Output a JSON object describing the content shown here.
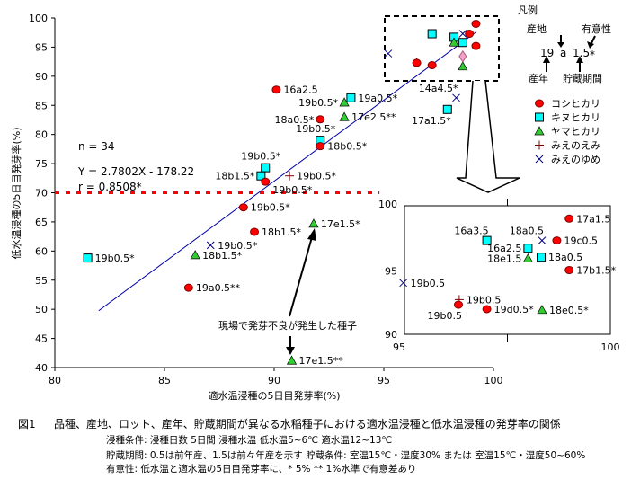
{
  "chart_data": {
    "type": "scatter",
    "xlabel": "適水温浸種の5日目発芽率(%)",
    "ylabel": "低水温浸種の5日目発芽率(%)",
    "xlim": [
      80,
      100
    ],
    "ylim": [
      40,
      100
    ],
    "xticks": [
      80,
      85,
      90,
      95,
      100
    ],
    "yticks": [
      40,
      45,
      50,
      55,
      60,
      65,
      70,
      75,
      80,
      85,
      90,
      95,
      100
    ],
    "threshold_y": 70,
    "regression": {
      "slope": 2.7802,
      "intercept": -178.22,
      "x_range": [
        82,
        99.2
      ],
      "equation": "Y = 2.7802X - 178.22",
      "r": "r  = 0.8508*",
      "n": "n = 34"
    },
    "colors": {
      "koshihikari": "#ff0000",
      "kinuhikari": "#00ffff",
      "yamahikari": "#33cc33",
      "mienoemi": "#800000",
      "mienoyume": "#000080",
      "threshold": "#ff0000",
      "regression": "#0000aa",
      "other": "#f4a0c8"
    },
    "points": [
      {
        "variety": "koshihikari",
        "x": 90.1,
        "y": 87.7,
        "label": "16a2.5",
        "side": "right"
      },
      {
        "variety": "kinuhikari",
        "x": 93.5,
        "y": 86.3,
        "label": "19a0.5*",
        "side": "right"
      },
      {
        "variety": "yamahikari",
        "x": 93.2,
        "y": 85.5,
        "label": "19b0.5*",
        "side": "left"
      },
      {
        "variety": "koshihikari",
        "x": 92.1,
        "y": 82.6,
        "label": "18a0.5*",
        "side": "left"
      },
      {
        "variety": "yamahikari",
        "x": 93.2,
        "y": 83.0,
        "label": "17e2.5**",
        "side": "right"
      },
      {
        "variety": "kinuhikari",
        "x": 92.1,
        "y": 79.0,
        "label": "19b0.5*",
        "side": "above"
      },
      {
        "variety": "koshihikari",
        "x": 92.1,
        "y": 78.0,
        "label": "18b0.5*",
        "side": "right"
      },
      {
        "variety": "kinuhikari",
        "x": 89.6,
        "y": 74.3,
        "label": "19b0.5*",
        "side": "above"
      },
      {
        "variety": "kinuhikari",
        "x": 89.4,
        "y": 72.9,
        "label": "18b1.5*",
        "side": "left"
      },
      {
        "variety": "koshihikari",
        "x": 89.6,
        "y": 71.9,
        "label": "19b0.5*",
        "side": "below"
      },
      {
        "variety": "mienoemi",
        "x": 90.7,
        "y": 72.9,
        "label": "19b0.5*",
        "side": "right"
      },
      {
        "variety": "koshihikari",
        "x": 88.6,
        "y": 67.5,
        "label": "19b0.5*",
        "side": "right"
      },
      {
        "variety": "yamahikari",
        "x": 91.8,
        "y": 64.7,
        "label": "17e1.5*",
        "side": "right"
      },
      {
        "variety": "koshihikari",
        "x": 89.1,
        "y": 63.3,
        "label": "18b1.5*",
        "side": "right"
      },
      {
        "variety": "mienoyume",
        "x": 87.1,
        "y": 61.0,
        "label": "19b0.5*",
        "side": "right"
      },
      {
        "variety": "yamahikari",
        "x": 86.4,
        "y": 59.3,
        "label": "18b1.5*",
        "side": "right"
      },
      {
        "variety": "kinuhikari",
        "x": 81.5,
        "y": 58.8,
        "label": "19b0.5*",
        "side": "right"
      },
      {
        "variety": "koshihikari",
        "x": 86.1,
        "y": 53.7,
        "label": "19a0.5**",
        "side": "right"
      },
      {
        "variety": "yamahikari",
        "x": 90.8,
        "y": 41.2,
        "label": "17e1.5**",
        "side": "right"
      },
      {
        "variety": "mienoyume",
        "x": 98.3,
        "y": 86.3,
        "label": "14a4.5*",
        "side": "aboveleft"
      },
      {
        "variety": "kinuhikari",
        "x": 97.9,
        "y": 84.3,
        "label": "17a1.5*",
        "side": "belowleft"
      },
      {
        "variety": "koshihikari",
        "x": 99.2,
        "y": 99.0
      },
      {
        "variety": "koshihikari",
        "x": 98.9,
        "y": 97.3
      },
      {
        "variety": "koshihikari",
        "x": 99.2,
        "y": 95.2
      },
      {
        "variety": "kinuhikari",
        "x": 97.2,
        "y": 97.3
      },
      {
        "variety": "kinuhikari",
        "x": 98.2,
        "y": 96.7
      },
      {
        "variety": "kinuhikari",
        "x": 98.6,
        "y": 95.8
      },
      {
        "variety": "yamahikari",
        "x": 98.2,
        "y": 95.8
      },
      {
        "variety": "yamahikari",
        "x": 98.6,
        "y": 91.7
      },
      {
        "variety": "other",
        "x": 98.6,
        "y": 93.4
      },
      {
        "variety": "mienoyume",
        "x": 98.6,
        "y": 97.3
      },
      {
        "variety": "mienoyume",
        "x": 95.2,
        "y": 93.9
      },
      {
        "variety": "mienoemi",
        "x": 96.5,
        "y": 92.3
      },
      {
        "variety": "koshihikari",
        "x": 96.5,
        "y": 92.3
      },
      {
        "variety": "koshihikari",
        "x": 97.2,
        "y": 91.9
      }
    ],
    "inset": {
      "xlim": [
        95,
        100
      ],
      "ylim": [
        90,
        100
      ],
      "xticks": [
        95,
        100
      ],
      "yticks": [
        90,
        95,
        100
      ],
      "points": [
        {
          "variety": "koshihikari",
          "x": 99.0,
          "y": 99.0,
          "label": "17a1.5",
          "side": "right"
        },
        {
          "variety": "mienoyume",
          "x": 98.34,
          "y": 97.3,
          "label": "18a0.5",
          "side": "aboveleft"
        },
        {
          "variety": "koshihikari",
          "x": 98.7,
          "y": 97.3,
          "label": "19c0.5",
          "side": "right"
        },
        {
          "variety": "kinuhikari",
          "x": 97.0,
          "y": 97.3,
          "label": "16a3.5",
          "side": "aboveleft"
        },
        {
          "variety": "kinuhikari",
          "x": 98.0,
          "y": 96.7,
          "label": "16a2.5",
          "side": "left"
        },
        {
          "variety": "yamahikari",
          "x": 98.0,
          "y": 95.9,
          "label": "18e1.5",
          "side": "left"
        },
        {
          "variety": "kinuhikari",
          "x": 98.32,
          "y": 96.0,
          "label": "18a0.5",
          "side": "right"
        },
        {
          "variety": "koshihikari",
          "x": 99.0,
          "y": 95.0,
          "label": "17b1.5*",
          "side": "right"
        },
        {
          "variety": "mienoyume",
          "x": 94.97,
          "y": 94.0,
          "label": "19b0.5",
          "side": "right"
        },
        {
          "variety": "mienoemi",
          "x": 96.33,
          "y": 92.7,
          "label": "19b0.5",
          "side": "right"
        },
        {
          "variety": "koshihikari",
          "x": 96.31,
          "y": 92.3,
          "label": "19b0.5",
          "side": "belowleft"
        },
        {
          "variety": "koshihikari",
          "x": 97.0,
          "y": 91.96,
          "label": "19d0.5*",
          "side": "right"
        },
        {
          "variety": "yamahikari",
          "x": 98.34,
          "y": 91.9,
          "label": "18e0.5*",
          "side": "right"
        }
      ]
    },
    "annotation": "現場で発芽不良が発生した種子",
    "legend": {
      "title": "凡例",
      "key": {
        "origin": "産地",
        "significance": "有意性",
        "year": "19",
        "place": "a",
        "period": "1.5",
        "star": "*",
        "year_label": "産年",
        "period_label": "貯蔵期間"
      },
      "items": [
        {
          "variety": "koshihikari",
          "label": "コシヒカリ"
        },
        {
          "variety": "kinuhikari",
          "label": "キヌヒカリ"
        },
        {
          "variety": "yamahikari",
          "label": "ヤマヒカリ"
        },
        {
          "variety": "mienoemi",
          "label": "みえのえみ"
        },
        {
          "variety": "mienoyume",
          "label": "みえのゆめ"
        }
      ]
    }
  },
  "caption": {
    "fig": "図1",
    "title": "品種、産地、ロット、産年、貯蔵期間が異なる水稲種子における適水温浸種と低水温浸種の発芽率の関係",
    "line1": "浸種条件: 浸種日数  5日間    浸種水温  低水温5~6℃  適水温12~13℃",
    "line2": "貯蔵期間: 0.5は前年産、1.5は前々年産を示す     貯蔵条件: 室温15℃・湿度30%  または  室温15℃・湿度50~60%",
    "line3": "有意性: 低水温と適水温の5日目発芽率に、* 5%  ** 1%水準で有意差あり"
  }
}
